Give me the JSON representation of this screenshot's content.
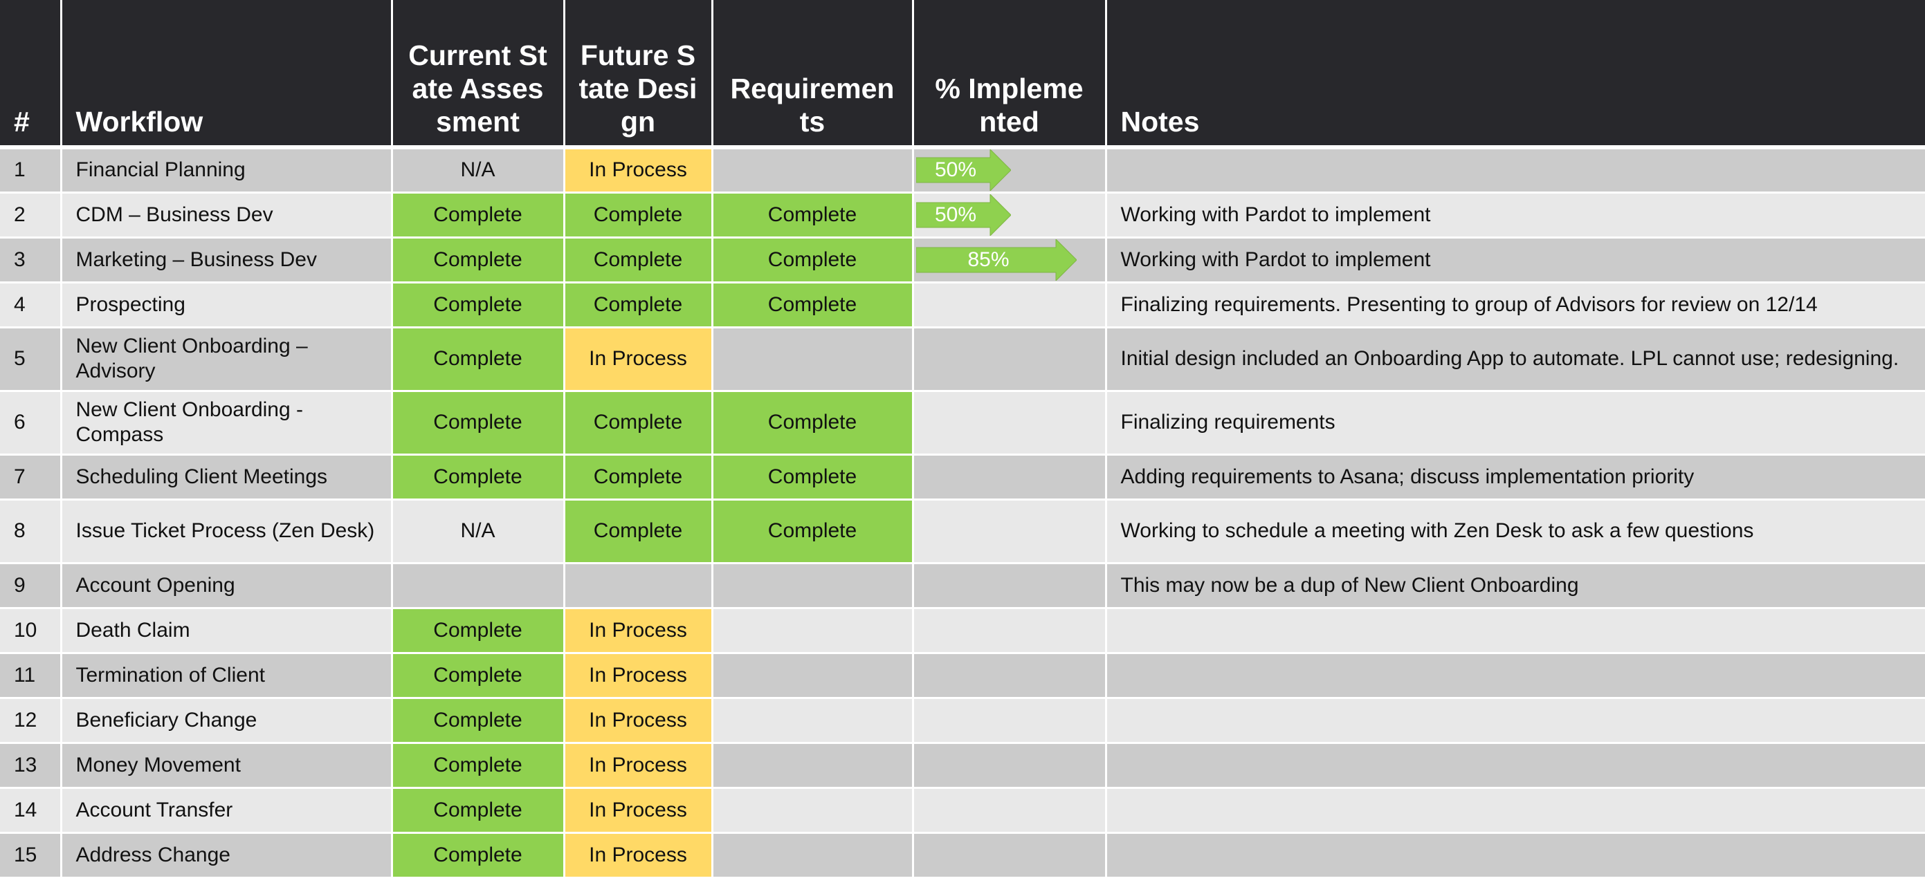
{
  "table": {
    "headers": {
      "num": "#",
      "workflow": "Workflow",
      "current": "Current State Assessment",
      "future": "Future State Design",
      "requirements": "Requirements",
      "pct": "% Implemented",
      "notes": "Notes"
    },
    "rows": [
      {
        "num": "1",
        "workflow": "Financial Planning",
        "current": "N/A",
        "future": "In Process",
        "requirements": "",
        "pct_label": "50%",
        "pct_value": 50,
        "notes": ""
      },
      {
        "num": "2",
        "workflow": "CDM – Business Dev",
        "current": "Complete",
        "future": "Complete",
        "requirements": "Complete",
        "pct_label": "50%",
        "pct_value": 50,
        "notes": "Working with Pardot to implement"
      },
      {
        "num": "3",
        "workflow": "Marketing – Business Dev",
        "current": "Complete",
        "future": "Complete",
        "requirements": "Complete",
        "pct_label": "85%",
        "pct_value": 85,
        "notes": "Working with Pardot to implement"
      },
      {
        "num": "4",
        "workflow": "Prospecting",
        "current": "Complete",
        "future": "Complete",
        "requirements": "Complete",
        "pct_label": "",
        "pct_value": null,
        "notes": "Finalizing requirements.  Presenting to group of Advisors for review on 12/14"
      },
      {
        "num": "5",
        "workflow": "New Client Onboarding – Advisory",
        "current": "Complete",
        "future": "In Process",
        "requirements": "",
        "pct_label": "",
        "pct_value": null,
        "notes": "Initial design included an Onboarding App to automate.  LPL cannot use; redesigning."
      },
      {
        "num": "6",
        "workflow": "New Client Onboarding - Compass",
        "current": "Complete",
        "future": "Complete",
        "requirements": "Complete",
        "pct_label": "",
        "pct_value": null,
        "notes": "Finalizing requirements"
      },
      {
        "num": "7",
        "workflow": "Scheduling Client Meetings",
        "current": "Complete",
        "future": "Complete",
        "requirements": "Complete",
        "pct_label": "",
        "pct_value": null,
        "notes": "Adding requirements to Asana; discuss implementation priority"
      },
      {
        "num": "8",
        "workflow": "Issue Ticket Process (Zen Desk)",
        "current": "N/A",
        "future": "Complete",
        "requirements": "Complete",
        "pct_label": "",
        "pct_value": null,
        "notes": "Working to schedule a meeting with Zen Desk to ask a few questions"
      },
      {
        "num": "9",
        "workflow": "Account Opening",
        "current": "",
        "future": "",
        "requirements": "",
        "pct_label": "",
        "pct_value": null,
        "notes": "This may now be a dup of New Client Onboarding"
      },
      {
        "num": "10",
        "workflow": "Death Claim",
        "current": "Complete",
        "future": "In Process",
        "requirements": "",
        "pct_label": "",
        "pct_value": null,
        "notes": ""
      },
      {
        "num": "11",
        "workflow": "Termination of Client",
        "current": "Complete",
        "future": "In Process",
        "requirements": "",
        "pct_label": "",
        "pct_value": null,
        "notes": ""
      },
      {
        "num": "12",
        "workflow": "Beneficiary Change",
        "current": "Complete",
        "future": "In Process",
        "requirements": "",
        "pct_label": "",
        "pct_value": null,
        "notes": ""
      },
      {
        "num": "13",
        "workflow": "Money Movement",
        "current": "Complete",
        "future": "In Process",
        "requirements": "",
        "pct_label": "",
        "pct_value": null,
        "notes": ""
      },
      {
        "num": "14",
        "workflow": "Account Transfer",
        "current": "Complete",
        "future": "In Process",
        "requirements": "",
        "pct_label": "",
        "pct_value": null,
        "notes": ""
      },
      {
        "num": "15",
        "workflow": "Address Change",
        "current": "Complete",
        "future": "In Process",
        "requirements": "",
        "pct_label": "",
        "pct_value": null,
        "notes": ""
      }
    ]
  },
  "colors": {
    "header_bg": "#28282c",
    "complete": "#8fd14f",
    "in_process": "#ffd966",
    "row_dark": "#cbcbcb",
    "row_light": "#e8e8e8",
    "arrow": "#8fd14f"
  }
}
